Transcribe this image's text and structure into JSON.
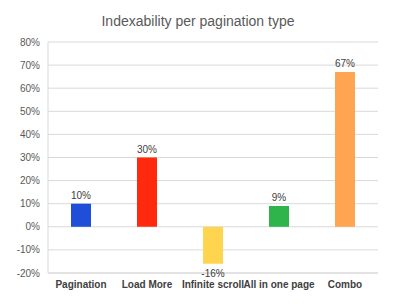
{
  "chart_data": {
    "type": "bar",
    "title": "Indexability per pagination type",
    "categories": [
      "Pagination",
      "Load More",
      "Infinite scroll",
      "All in one page",
      "Combo"
    ],
    "values": [
      10,
      30,
      -16,
      9,
      67
    ],
    "value_labels": [
      "10%",
      "30%",
      "-16%",
      "9%",
      "67%"
    ],
    "colors": [
      "#1f4fd8",
      "#ff2a0d",
      "#ffd54f",
      "#2fb34b",
      "#ffa552"
    ],
    "ylim": [
      -20,
      80
    ],
    "yticks": [
      {
        "value": -20,
        "label": "-20%"
      },
      {
        "value": -10,
        "label": "-10%"
      },
      {
        "value": 0,
        "label": "0%"
      },
      {
        "value": 10,
        "label": "10%"
      },
      {
        "value": 20,
        "label": "20%"
      },
      {
        "value": 30,
        "label": "30%"
      },
      {
        "value": 40,
        "label": "40%"
      },
      {
        "value": 50,
        "label": "50%"
      },
      {
        "value": 60,
        "label": "60%"
      },
      {
        "value": 70,
        "label": "70%"
      },
      {
        "value": 80,
        "label": "80%"
      }
    ],
    "grid": true,
    "data_labels": true
  }
}
